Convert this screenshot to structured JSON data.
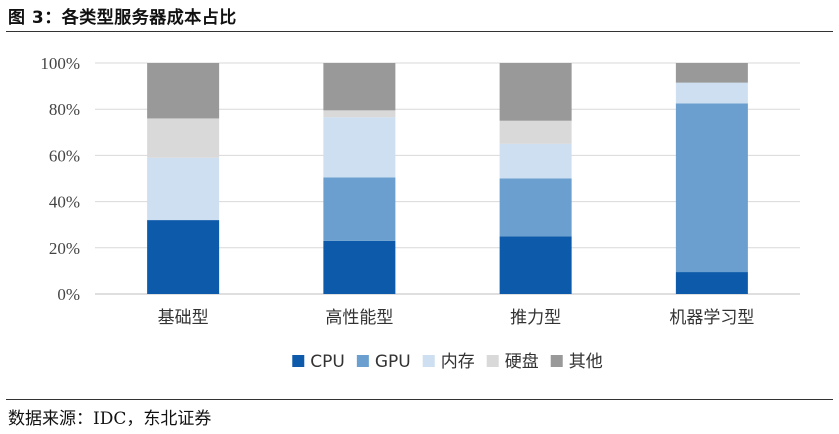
{
  "figure": {
    "title": "图 3：各类型服务器成本占比",
    "source": "数据来源：IDC，东北证券"
  },
  "chart_data": {
    "type": "bar",
    "stacked": true,
    "categories": [
      "基础型",
      "高性能型",
      "推力型",
      "机器学习型"
    ],
    "series": [
      {
        "name": "CPU",
        "color": "#0d5aab",
        "values": [
          32,
          23,
          25,
          9.5
        ]
      },
      {
        "name": "GPU",
        "color": "#6a9fcf",
        "values": [
          0,
          27.5,
          25,
          73
        ]
      },
      {
        "name": "内存",
        "color": "#cddff0",
        "values": [
          27,
          26,
          15,
          9
        ]
      },
      {
        "name": "硬盘",
        "color": "#d9d9d9",
        "values": [
          17,
          3,
          10,
          0
        ]
      },
      {
        "name": "其他",
        "color": "#999999",
        "values": [
          24,
          20.5,
          25,
          8.5
        ]
      }
    ],
    "yticks": [
      "0%",
      "20%",
      "40%",
      "60%",
      "80%",
      "100%"
    ],
    "ylim": [
      0,
      100
    ],
    "grid": true,
    "legend_position": "bottom"
  }
}
